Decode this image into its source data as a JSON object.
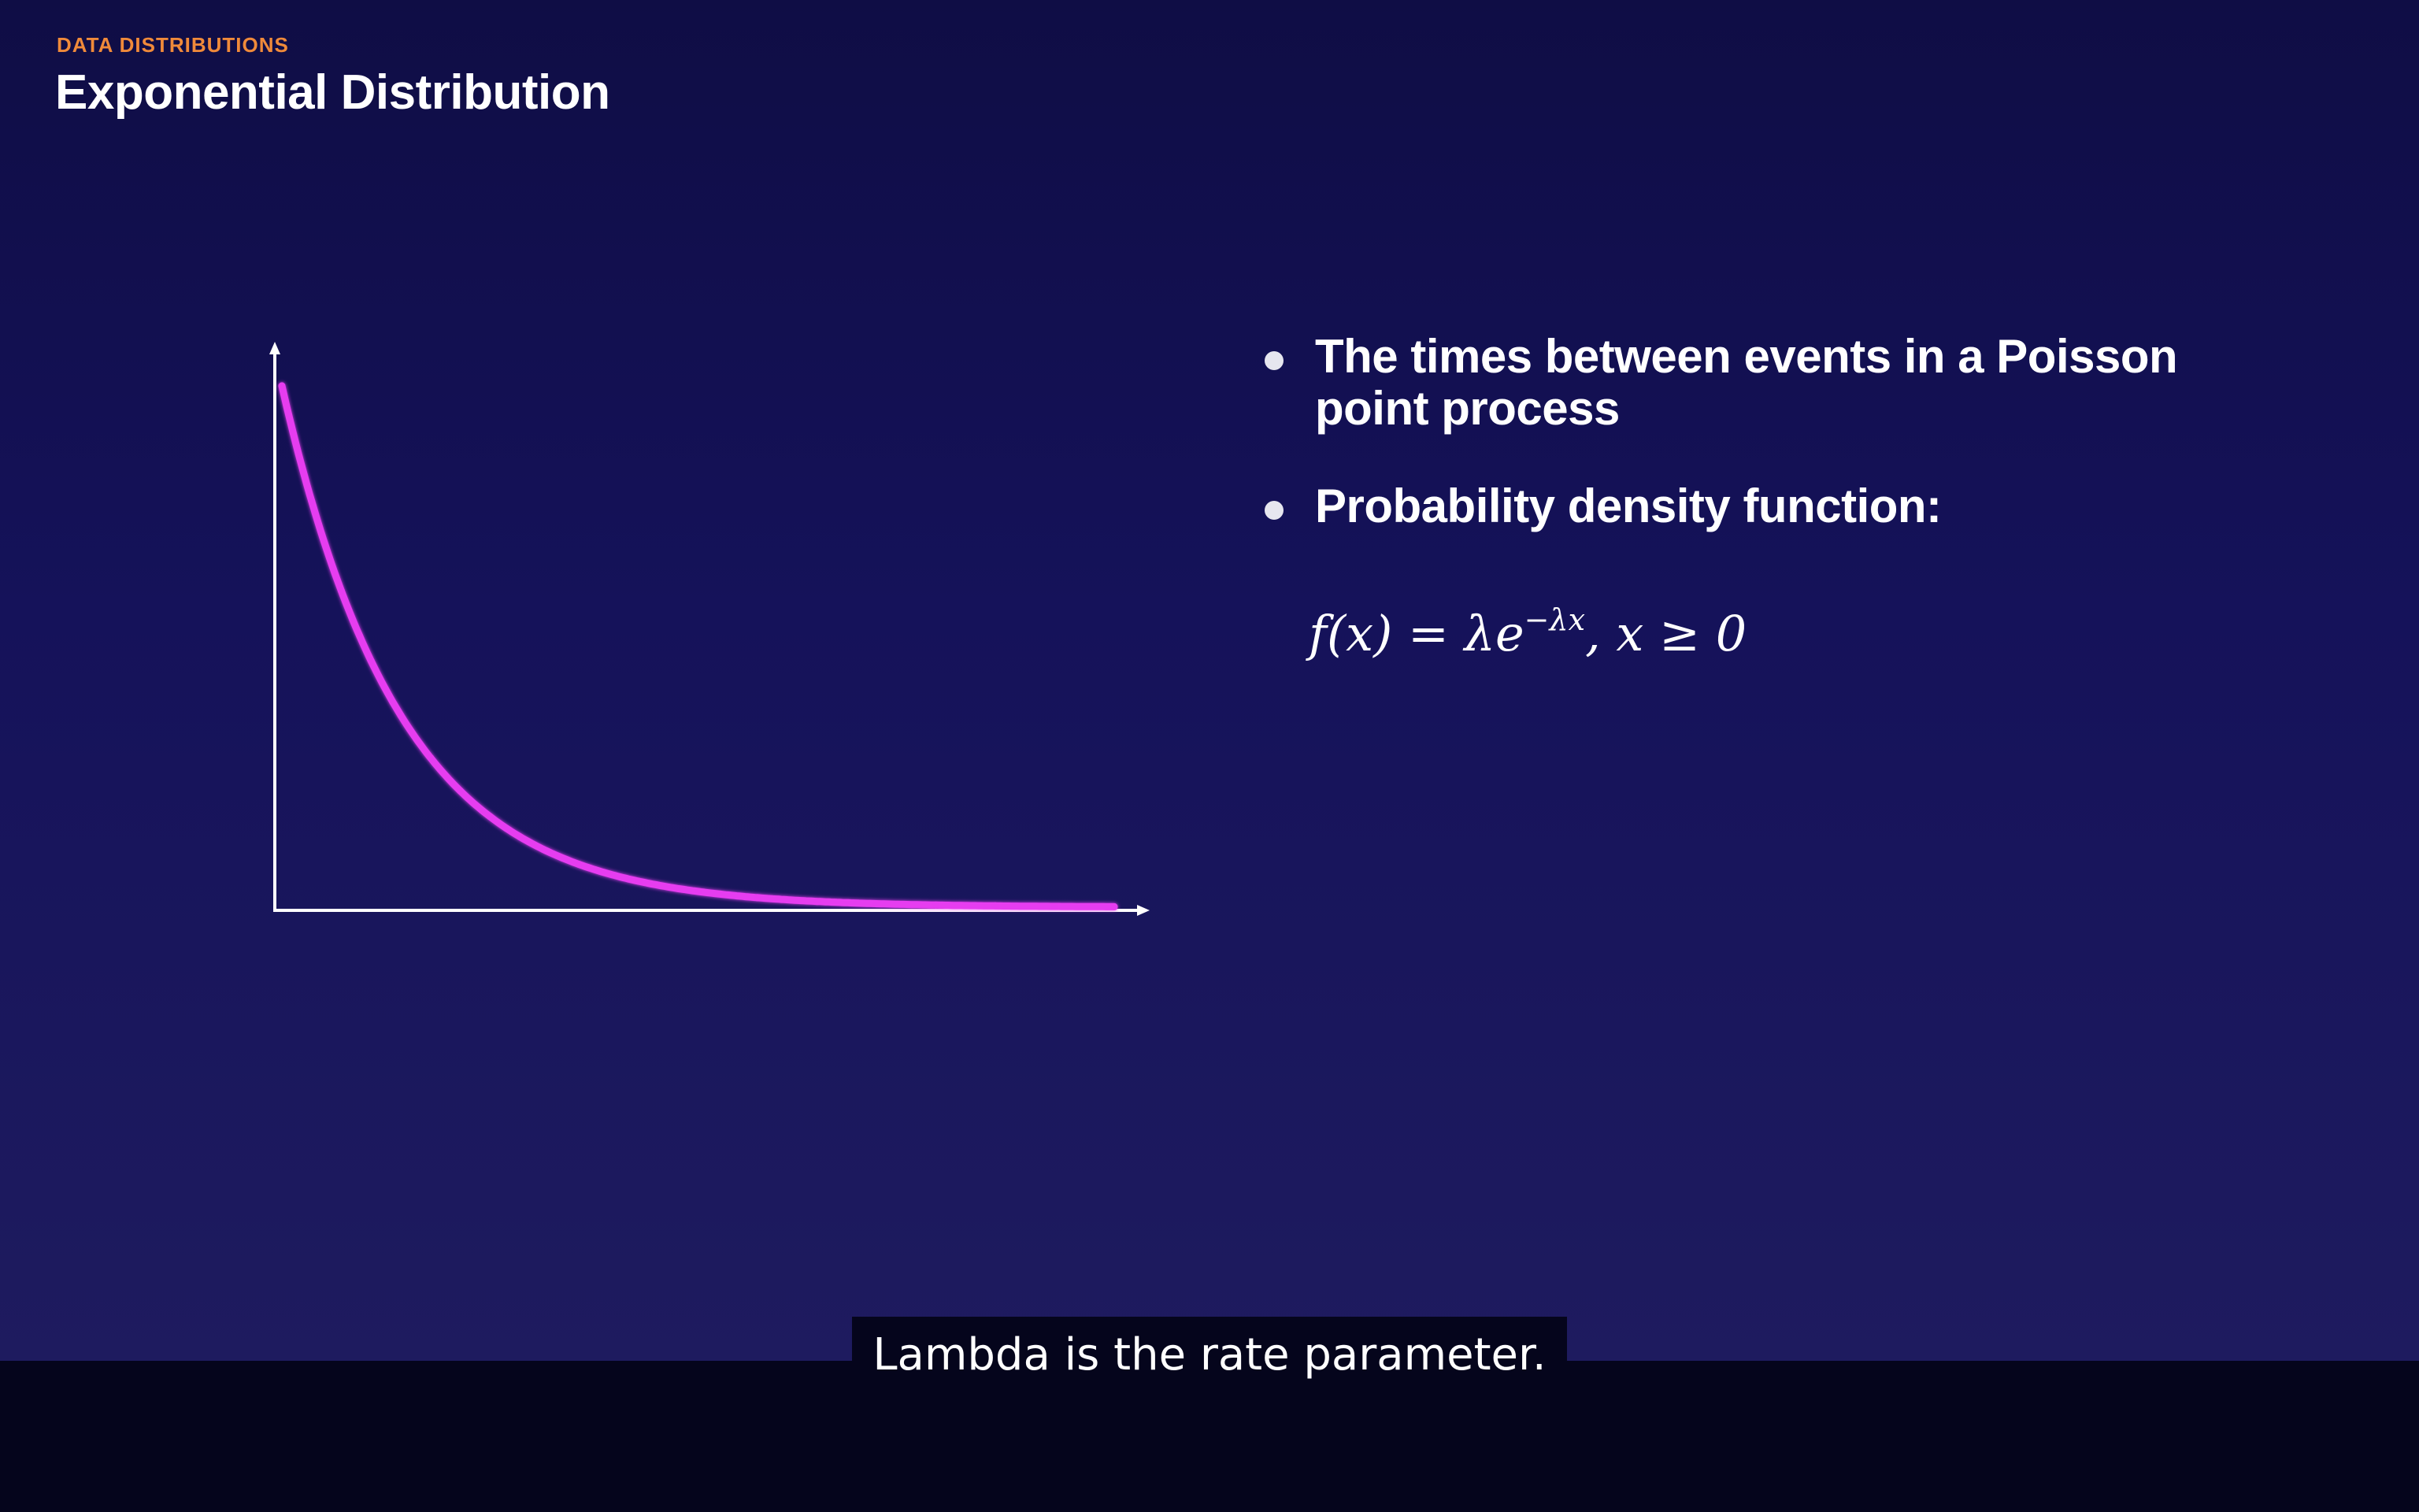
{
  "slide": {
    "kicker": "DATA DISTRIBUTIONS",
    "title": "Exponential Distribution",
    "bullets": [
      {
        "line1": "The times between events in a Poisson",
        "line2": "point process"
      },
      {
        "line1": "Probability density function:"
      }
    ],
    "formula": {
      "lhs": "f(x) = ",
      "lambda": "λ",
      "e": "e",
      "exponent": "−λx",
      "condition": ", x ≥ 0"
    }
  },
  "caption": {
    "text": "Lambda is the rate parameter."
  },
  "colors": {
    "curve": "#e63cf0",
    "axis": "#ffffff",
    "kicker": "#f08a3a",
    "background_top": "#0f0d45",
    "background_bottom": "#1e1b5f"
  },
  "chart_data": {
    "type": "line",
    "x": [
      0,
      0.25,
      0.5,
      0.75,
      1,
      1.25,
      1.5,
      1.75,
      2,
      2.5,
      3,
      3.5,
      4,
      4.5,
      5,
      5.5,
      6,
      6.5,
      7
    ],
    "series": [
      {
        "values": [
          1.0,
          0.7788,
          0.6065,
          0.4724,
          0.3679,
          0.2865,
          0.2231,
          0.1738,
          0.1353,
          0.0821,
          0.0498,
          0.0302,
          0.0183,
          0.0111,
          0.0067,
          0.0041,
          0.0025,
          0.0015,
          0.0009
        ]
      }
    ],
    "title": "",
    "xlabel": "",
    "ylabel": "",
    "xlim": [
      0,
      7.4
    ],
    "ylim": [
      0,
      1.1
    ],
    "grid": false,
    "axes": "arrows, no ticks"
  }
}
